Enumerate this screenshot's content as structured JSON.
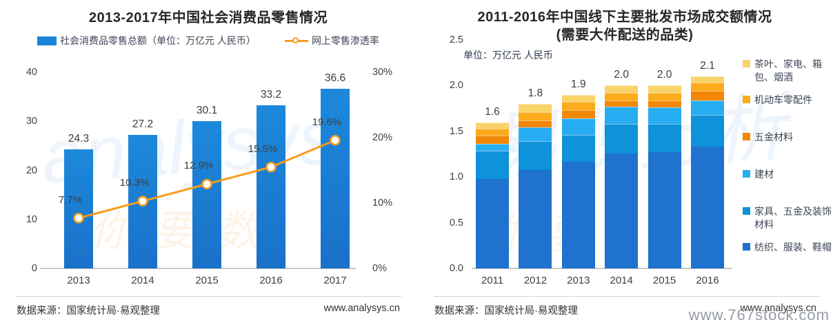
{
  "watermarks": {
    "stock_site": "www.767stock.com",
    "brand_script_left": "analysys",
    "brand_cn_left": "你要数",
    "brand_script_right": "易观分析",
    "brand_cn_right": "你要"
  },
  "chart_data": [
    {
      "type": "bar+line",
      "title": "2013-2017年中国社会消费品零售情况",
      "categories": [
        "2013",
        "2014",
        "2015",
        "2016",
        "2017"
      ],
      "series": [
        {
          "name": "社会消费品零售总额（单位：万亿元 人民币）",
          "type": "bar",
          "axis": "left",
          "color": "#1a84d8",
          "values": [
            24.3,
            27.2,
            30.1,
            33.2,
            36.6
          ]
        },
        {
          "name": "网上零售渗透率",
          "type": "line",
          "axis": "right",
          "color": "#F79C1C",
          "values": [
            7.7,
            10.3,
            12.9,
            15.5,
            19.6
          ],
          "labels": [
            "7.7%",
            "10.3%",
            "12.9%",
            "15.5%",
            "19.6%"
          ]
        }
      ],
      "left_axis": {
        "ticks": [
          0,
          10,
          20,
          30,
          40
        ],
        "max": 40,
        "label_suffix": ""
      },
      "right_axis": {
        "ticks": [
          "0%",
          "10%",
          "20%",
          "30%"
        ],
        "max": 30
      },
      "grid": false,
      "legend_position": "top",
      "source": "数据来源：国家统计局·易观整理",
      "website": "www.analysys.cn"
    },
    {
      "type": "stacked-bar",
      "title_line1": "2011-2016年中国线下主要批发市场成交额情况",
      "title_line2": "(需要大件配送的品类)",
      "unit_note": "单位：万亿元 人民币",
      "categories": [
        "2011",
        "2012",
        "2013",
        "2014",
        "2015",
        "2016"
      ],
      "totals": [
        "1.6",
        "1.8",
        "1.9",
        "2.0",
        "2.0",
        "2.1"
      ],
      "series_bottom_to_top": [
        {
          "name": "纺织、服装、鞋帽",
          "color": "#1f72ce",
          "values": [
            0.98,
            1.08,
            1.17,
            1.26,
            1.27,
            1.33
          ]
        },
        {
          "name": "家具、五金及装饰材料",
          "color": "#0e92d9",
          "values": [
            0.31,
            0.31,
            0.29,
            0.32,
            0.31,
            0.35
          ]
        },
        {
          "name": "建材",
          "color": "#27adf2",
          "values": [
            0.07,
            0.15,
            0.18,
            0.19,
            0.18,
            0.16
          ]
        },
        {
          "name": "五金材料",
          "color": "#f28705",
          "values": [
            0.09,
            0.08,
            0.09,
            0.07,
            0.08,
            0.1
          ]
        },
        {
          "name": "机动车零配件",
          "color": "#fcab1c",
          "values": [
            0.08,
            0.09,
            0.09,
            0.08,
            0.08,
            0.09
          ]
        },
        {
          "name": "茶叶、家电、箱包、烟酒",
          "color": "#f9d26a",
          "values": [
            0.07,
            0.09,
            0.08,
            0.08,
            0.08,
            0.07
          ]
        }
      ],
      "y_axis": {
        "ticks": [
          "0.0",
          "0.5",
          "1.0",
          "1.5",
          "2.0",
          "2.5"
        ],
        "max": 2.5
      },
      "grid": false,
      "legend_position": "right",
      "source": "数据来源：国家统计局·易观整理",
      "website": "www.analysys.cn"
    }
  ]
}
